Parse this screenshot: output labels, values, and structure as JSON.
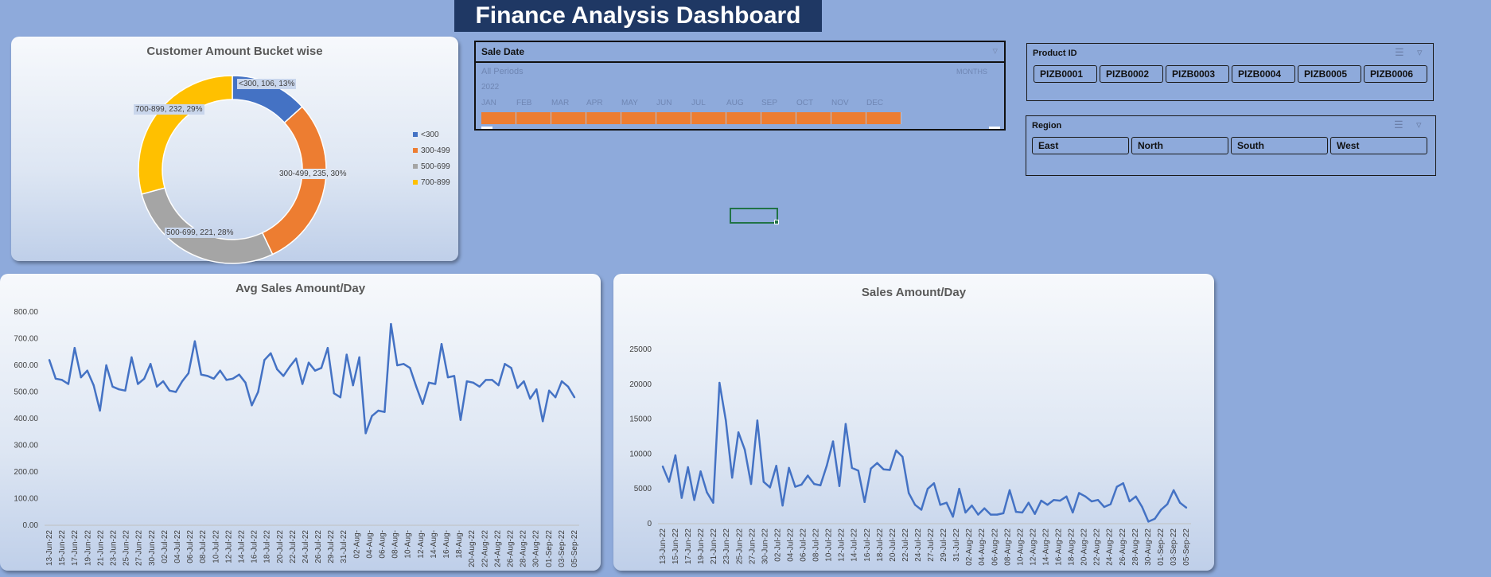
{
  "dashboard": {
    "title": "Finance Analysis Dashboard"
  },
  "donut": {
    "title": "Customer Amount Bucket wise",
    "legend": [
      "<300",
      "300-499",
      "500-699",
      "700-899"
    ],
    "labels": [
      "<300, 106, 13%",
      "300-499, 235, 30%",
      "500-699, 221, 28%",
      "700-899, 232, 29%"
    ]
  },
  "timeline": {
    "title": "Sale Date",
    "period_label": "All Periods",
    "level_label": "MONTHS",
    "year": "2022",
    "months": [
      "JAN",
      "FEB",
      "MAR",
      "APR",
      "MAY",
      "JUN",
      "JUL",
      "AUG",
      "SEP",
      "OCT",
      "NOV",
      "DEC"
    ]
  },
  "product_slicer": {
    "title": "Product ID",
    "items": [
      "PIZB0001",
      "PIZB0002",
      "PIZB0003",
      "PIZB0004",
      "PIZB0005",
      "PIZB0006"
    ]
  },
  "region_slicer": {
    "title": "Region",
    "items": [
      "East",
      "North",
      "South",
      "West"
    ]
  },
  "colors": {
    "line": "#4472c4",
    "donut": [
      "#4472c4",
      "#ed7d31",
      "#a5a5a5",
      "#ffc000"
    ],
    "timeline_bar": "#ed7d31"
  },
  "chart_data": [
    {
      "type": "pie",
      "title": "Customer Amount Bucket wise",
      "categories": [
        "<300",
        "300-499",
        "500-699",
        "700-899"
      ],
      "values": [
        106,
        235,
        221,
        232
      ],
      "percents": [
        13,
        30,
        28,
        29
      ],
      "legend": "right"
    },
    {
      "type": "line",
      "title": "Avg Sales Amount/Day",
      "ylim": [
        0,
        800
      ],
      "yticks": [
        "0.00",
        "100.00",
        "200.00",
        "300.00",
        "400.00",
        "500.00",
        "600.00",
        "700.00",
        "800.00"
      ],
      "xticks": [
        "13-Jun-22",
        "15-Jun-22",
        "17-Jun-22",
        "19-Jun-22",
        "21-Jun-22",
        "23-Jun-22",
        "25-Jun-22",
        "27-Jun-22",
        "30-Jun-22",
        "02-Jul-22",
        "04-Jul-22",
        "06-Jul-22",
        "08-Jul-22",
        "10-Jul-22",
        "12-Jul-22",
        "14-Jul-22",
        "16-Jul-22",
        "18-Jul-22",
        "20-Jul-22",
        "22-Jul-22",
        "24-Jul-22",
        "26-Jul-22",
        "29-Jul-22",
        "31-Jul-22",
        "02-Aug-",
        "04-Aug-",
        "06-Aug-",
        "08-Aug-",
        "10-Aug-",
        "12-Aug-",
        "14-Aug-",
        "16-Aug-",
        "18-Aug-",
        "20-Aug-22",
        "22-Aug-22",
        "24-Aug-22",
        "26-Aug-22",
        "28-Aug-22",
        "30-Aug-22",
        "01-Sep-22",
        "03-Sep-22",
        "05-Sep-22"
      ],
      "values": [
        620,
        550,
        545,
        530,
        665,
        555,
        580,
        525,
        430,
        600,
        520,
        510,
        505,
        630,
        530,
        550,
        605,
        520,
        540,
        505,
        500,
        540,
        570,
        690,
        565,
        560,
        550,
        580,
        545,
        550,
        565,
        535,
        450,
        500,
        620,
        645,
        585,
        560,
        595,
        625,
        530,
        610,
        580,
        590,
        665,
        495,
        480,
        640,
        525,
        630,
        345,
        410,
        430,
        425,
        755,
        600,
        605,
        590,
        520,
        455,
        535,
        530,
        680,
        555,
        560,
        395,
        540,
        535,
        520,
        545,
        545,
        525,
        605,
        590,
        515,
        540,
        475,
        510,
        390,
        505,
        480,
        540,
        520,
        480
      ],
      "grid": false
    },
    {
      "type": "line",
      "title": "Sales Amount/Day",
      "ylim": [
        0,
        25000
      ],
      "yticks": [
        "0",
        "5000",
        "10000",
        "15000",
        "20000",
        "25000"
      ],
      "xticks": [
        "13-Jun-22",
        "15-Jun-22",
        "17-Jun-22",
        "19-Jun-22",
        "21-Jun-22",
        "23-Jun-22",
        "25-Jun-22",
        "27-Jun-22",
        "30-Jun-22",
        "02-Jul-22",
        "04-Jul-22",
        "06-Jul-22",
        "08-Jul-22",
        "10-Jul-22",
        "12-Jul-22",
        "14-Jul-22",
        "16-Jul-22",
        "18-Jul-22",
        "20-Jul-22",
        "22-Jul-22",
        "24-Jul-22",
        "27-Jul-22",
        "29-Jul-22",
        "31-Jul-22",
        "02-Aug-22",
        "04-Aug-22",
        "06-Aug-22",
        "08-Aug-22",
        "10-Aug-22",
        "12-Aug-22",
        "14-Aug-22",
        "16-Aug-22",
        "18-Aug-22",
        "20-Aug-22",
        "22-Aug-22",
        "24-Aug-22",
        "26-Aug-22",
        "28-Aug-22",
        "30-Aug-22",
        "01-Sep-22",
        "03-Sep-22",
        "05-Sep-22"
      ],
      "values": [
        8200,
        6000,
        9800,
        3700,
        8100,
        3400,
        7500,
        4500,
        3000,
        20200,
        14800,
        6600,
        13100,
        10600,
        5700,
        14800,
        6000,
        5200,
        8300,
        2600,
        8000,
        5300,
        5600,
        6900,
        5700,
        5500,
        8300,
        11800,
        5400,
        14300,
        8000,
        7600,
        3100,
        7900,
        8700,
        7800,
        7700,
        10500,
        9600,
        4400,
        2700,
        2000,
        5000,
        5800,
        2700,
        3000,
        1000,
        5000,
        1600,
        2600,
        1300,
        2200,
        1300,
        1300,
        1500,
        4800,
        1700,
        1600,
        3000,
        1400,
        3300,
        2700,
        3400,
        3300,
        3900,
        1600,
        4400,
        3900,
        3200,
        3400,
        2400,
        2800,
        5300,
        5800,
        3200,
        3900,
        2400,
        300,
        700,
        2000,
        2800,
        4800,
        3000,
        2300
      ],
      "grid": false
    }
  ]
}
